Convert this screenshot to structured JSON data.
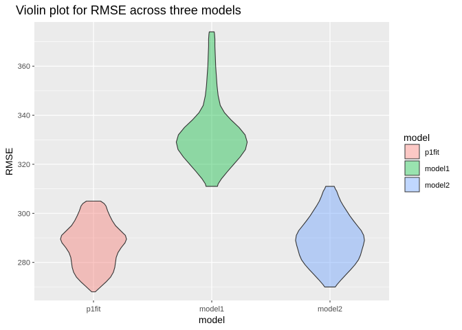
{
  "chart_data": {
    "type": "violin",
    "title": "Violin plot for RMSE across three models",
    "xlabel": "model",
    "ylabel": "RMSE",
    "categories": [
      "p1fit",
      "model1",
      "model2"
    ],
    "ylim": [
      264.5,
      378
    ],
    "y_ticks": [
      280,
      300,
      320,
      340,
      360
    ],
    "y_tick_labels": [
      "280",
      "300",
      "320",
      "340",
      "360"
    ],
    "grid": true,
    "legend": {
      "title": "model",
      "placement": "right",
      "entries": [
        "p1fit",
        "model1",
        "model2"
      ]
    },
    "series": [
      {
        "name": "p1fit",
        "color": "#F8766D",
        "min": 268,
        "max": 305,
        "profile": [
          [
            268,
            0.05
          ],
          [
            270,
            0.2
          ],
          [
            272,
            0.35
          ],
          [
            274,
            0.48
          ],
          [
            276,
            0.56
          ],
          [
            278,
            0.6
          ],
          [
            280,
            0.62
          ],
          [
            282,
            0.64
          ],
          [
            284,
            0.69
          ],
          [
            286,
            0.78
          ],
          [
            288,
            0.89
          ],
          [
            289.5,
            0.93
          ],
          [
            291,
            0.9
          ],
          [
            293,
            0.76
          ],
          [
            295,
            0.62
          ],
          [
            297,
            0.53
          ],
          [
            299,
            0.46
          ],
          [
            301,
            0.4
          ],
          [
            303,
            0.35
          ],
          [
            304,
            0.3
          ],
          [
            305,
            0.2
          ]
        ]
      },
      {
        "name": "model1",
        "color": "#00BA38",
        "min": 311,
        "max": 374,
        "profile": [
          [
            311,
            0.16
          ],
          [
            312,
            0.18
          ],
          [
            314,
            0.27
          ],
          [
            317,
            0.44
          ],
          [
            320,
            0.62
          ],
          [
            323,
            0.8
          ],
          [
            326,
            0.95
          ],
          [
            329,
            1.0
          ],
          [
            332,
            0.94
          ],
          [
            335,
            0.77
          ],
          [
            338,
            0.55
          ],
          [
            341,
            0.36
          ],
          [
            344,
            0.24
          ],
          [
            348,
            0.18
          ],
          [
            352,
            0.15
          ],
          [
            356,
            0.13
          ],
          [
            360,
            0.11
          ],
          [
            364,
            0.1
          ],
          [
            368,
            0.09
          ],
          [
            371,
            0.09
          ],
          [
            373,
            0.08
          ],
          [
            374,
            0.07
          ]
        ]
      },
      {
        "name": "model2",
        "color": "#619CFF",
        "min": 270,
        "max": 311,
        "profile": [
          [
            270,
            0.15
          ],
          [
            271,
            0.2
          ],
          [
            273,
            0.32
          ],
          [
            275,
            0.45
          ],
          [
            277,
            0.58
          ],
          [
            279,
            0.7
          ],
          [
            281,
            0.8
          ],
          [
            283,
            0.86
          ],
          [
            285,
            0.9
          ],
          [
            287,
            0.94
          ],
          [
            289,
            0.97
          ],
          [
            291,
            0.95
          ],
          [
            293,
            0.88
          ],
          [
            295,
            0.77
          ],
          [
            297,
            0.66
          ],
          [
            299,
            0.56
          ],
          [
            301,
            0.47
          ],
          [
            303,
            0.38
          ],
          [
            305,
            0.3
          ],
          [
            307,
            0.24
          ],
          [
            309,
            0.19
          ],
          [
            310,
            0.15
          ],
          [
            311,
            0.12
          ]
        ]
      }
    ]
  }
}
